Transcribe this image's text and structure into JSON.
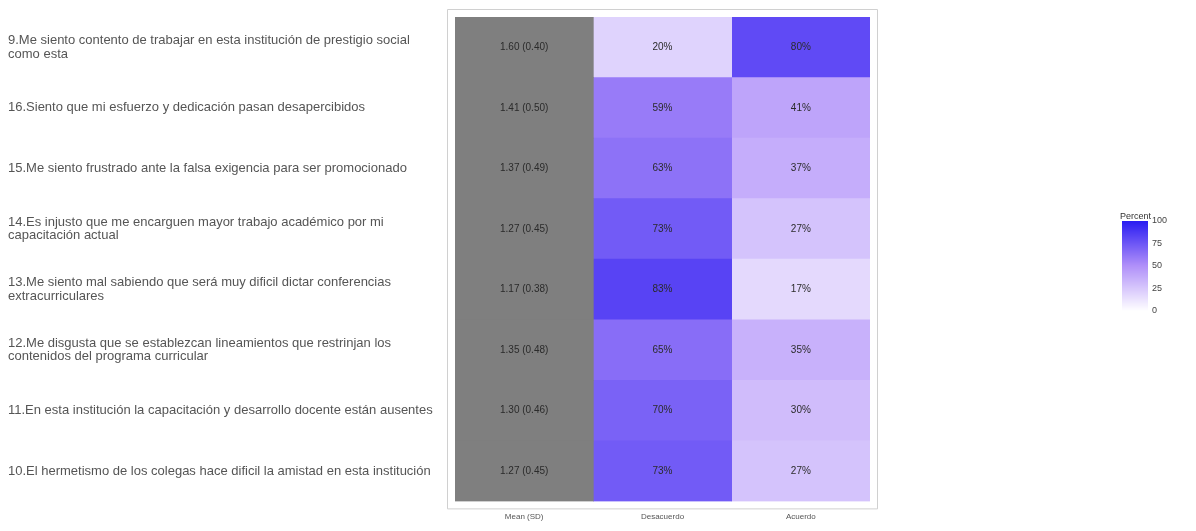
{
  "chart_data": {
    "type": "heatmap",
    "clabel": "Percent",
    "categories": [
      "Mean (SD)",
      "Desacuerdo",
      "Acuerdo"
    ],
    "y_categories": [
      "9.Me siento contento de trabajar en esta institución de prestigio social como esta",
      "16.Siento que mi esfuerzo y dedicación pasan desapercibidos",
      "15.Me siento frustrado ante la falsa exigencia para ser promocionado",
      "14.Es injusto que me encarguen mayor trabajo académico por mi capacitación actual",
      "13.Me siento mal sabiendo que será muy dificil dictar conferencias extracurriculares",
      "12.Me disgusta que se establezcan lineamientos que restrinjan los contenidos del programa curricular",
      "11.En esta institución la capacitación y desarrollo docente están ausentes",
      "10.El hermetismo de los colegas hace dificil la amistad en esta institución"
    ],
    "cells": [
      [
        null,
        20,
        80
      ],
      [
        null,
        59,
        41
      ],
      [
        null,
        63,
        37
      ],
      [
        null,
        73,
        27
      ],
      [
        null,
        83,
        17
      ],
      [
        null,
        65,
        35
      ],
      [
        null,
        70,
        30
      ],
      [
        null,
        73,
        27
      ]
    ],
    "cell_labels": [
      [
        "1.60 (0.40)",
        "20%",
        "80%"
      ],
      [
        "1.41 (0.50)",
        "59%",
        "41%"
      ],
      [
        "1.37 (0.49)",
        "63%",
        "37%"
      ],
      [
        "1.27 (0.45)",
        "73%",
        "27%"
      ],
      [
        "1.17 (0.38)",
        "83%",
        "17%"
      ],
      [
        "1.35 (0.48)",
        "65%",
        "35%"
      ],
      [
        "1.30 (0.46)",
        "70%",
        "30%"
      ],
      [
        "1.27 (0.45)",
        "73%",
        "27%"
      ]
    ],
    "clim": [
      0,
      100
    ],
    "cticks": [
      0,
      25,
      50,
      75,
      100
    ]
  }
}
